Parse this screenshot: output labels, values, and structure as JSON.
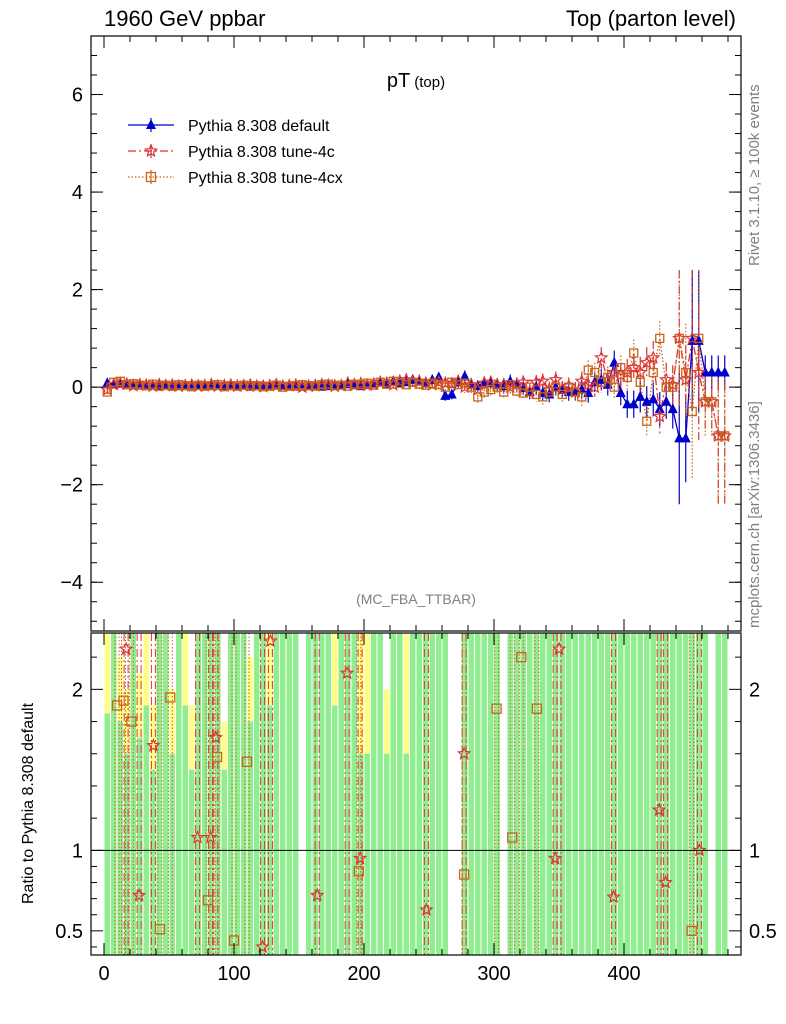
{
  "header": {
    "left": "1960 GeV ppbar",
    "right": "Top (parton level)"
  },
  "side_labels": {
    "rivet": "Rivet 3.1.10, ≥ 100k events",
    "mcplots": "mcplots.cern.ch [arXiv:1306.3436]"
  },
  "analysis_tag": "(MC_FBA_TTBAR)",
  "colors": {
    "default": "#0000cc",
    "tune4c": "#dd3333",
    "tune4cx": "#c8631b",
    "band_green": "#90ee90",
    "band_yellow": "#ffff88"
  },
  "chart_data": [
    {
      "type": "line",
      "title": "pT",
      "title_sub": "(top)",
      "xlim": [
        -10,
        490
      ],
      "ylim": [
        -5,
        7.2
      ],
      "yticks": [
        -4,
        -2,
        0,
        2,
        4,
        6
      ],
      "ytick_labels": [
        "−4",
        "−2",
        "0",
        "2",
        "4",
        "6"
      ],
      "legend_position": "top-left",
      "x": [
        2.5,
        7.5,
        12.5,
        17.5,
        22.5,
        27.5,
        32.5,
        37.5,
        42.5,
        47.5,
        52.5,
        57.5,
        62.5,
        67.5,
        72.5,
        77.5,
        82.5,
        87.5,
        92.5,
        97.5,
        102.5,
        107.5,
        112.5,
        117.5,
        122.5,
        127.5,
        132.5,
        137.5,
        142.5,
        147.5,
        152.5,
        157.5,
        162.5,
        167.5,
        172.5,
        177.5,
        182.5,
        187.5,
        192.5,
        197.5,
        202.5,
        207.5,
        212.5,
        217.5,
        222.5,
        227.5,
        232.5,
        237.5,
        242.5,
        247.5,
        252.5,
        257.5,
        262.5,
        267.5,
        272.5,
        277.5,
        282.5,
        287.5,
        292.5,
        297.5,
        302.5,
        307.5,
        312.5,
        317.5,
        322.5,
        327.5,
        332.5,
        337.5,
        342.5,
        347.5,
        352.5,
        357.5,
        362.5,
        367.5,
        372.5,
        377.5,
        382.5,
        387.5,
        392.5,
        397.5,
        402.5,
        407.5,
        412.5,
        417.5,
        422.5,
        427.5,
        432.5,
        437.5,
        442.5,
        447.5,
        452.5,
        457.5,
        462.5,
        467.5,
        472.5,
        477.5
      ],
      "series": [
        {
          "name": "Pythia 8.308 default",
          "marker": "triangle",
          "values": [
            0.08,
            0.06,
            0.07,
            0.05,
            0.04,
            0.05,
            0.03,
            0.04,
            0.02,
            0.05,
            0.03,
            0.02,
            0.04,
            0.03,
            0.05,
            0.02,
            0.03,
            0.04,
            0.02,
            0.03,
            0.02,
            0.03,
            0.01,
            0.02,
            0.04,
            0.02,
            0.03,
            0.03,
            0.02,
            0.01,
            0.03,
            0.02,
            0.04,
            0.01,
            0.02,
            0.05,
            0.03,
            0.06,
            0.04,
            0.02,
            0.05,
            0.08,
            0.1,
            0.06,
            0.12,
            0.08,
            0.1,
            0.15,
            0.12,
            0.08,
            0.15,
            0.2,
            -0.18,
            -0.15,
            0.1,
            0.22,
            0.06,
            0.02,
            0.1,
            0.08,
            0.05,
            0.02,
            0.12,
            0.06,
            -0.02,
            -0.1,
            0.0,
            -0.12,
            -0.15,
            0.0,
            -0.05,
            -0.1,
            -0.08,
            -0.05,
            -0.12,
            0.1,
            0.15,
            0.05,
            0.5,
            -0.12,
            -0.35,
            -0.35,
            -0.2,
            -0.3,
            -0.25,
            -0.45,
            -0.3,
            -0.45,
            -1.05,
            -1.05,
            0.95,
            0.95,
            0.3,
            0.3,
            0.3,
            0.3
          ],
          "errors": [
            0.06,
            0.06,
            0.05,
            0.05,
            0.05,
            0.05,
            0.05,
            0.05,
            0.05,
            0.05,
            0.05,
            0.05,
            0.05,
            0.05,
            0.05,
            0.05,
            0.05,
            0.05,
            0.05,
            0.05,
            0.05,
            0.05,
            0.05,
            0.05,
            0.05,
            0.05,
            0.05,
            0.05,
            0.05,
            0.05,
            0.05,
            0.05,
            0.05,
            0.05,
            0.05,
            0.06,
            0.06,
            0.06,
            0.06,
            0.06,
            0.07,
            0.07,
            0.07,
            0.07,
            0.08,
            0.08,
            0.08,
            0.08,
            0.09,
            0.09,
            0.1,
            0.1,
            0.1,
            0.1,
            0.1,
            0.12,
            0.12,
            0.12,
            0.12,
            0.12,
            0.13,
            0.13,
            0.14,
            0.14,
            0.14,
            0.15,
            0.15,
            0.16,
            0.16,
            0.17,
            0.17,
            0.18,
            0.18,
            0.2,
            0.2,
            0.2,
            0.22,
            0.22,
            0.25,
            0.25,
            0.28,
            0.28,
            0.32,
            0.32,
            0.35,
            0.35,
            0.35,
            0.4,
            1.35,
            0.9,
            1.45,
            1.45,
            0.35,
            0.35,
            0.35,
            0.35
          ]
        },
        {
          "name": "Pythia 8.308 tune-4c",
          "marker": "star",
          "values": [
            -0.05,
            0.05,
            0.07,
            0.06,
            0.03,
            0.05,
            0.04,
            0.02,
            0.05,
            0.03,
            0.04,
            0.02,
            0.03,
            0.04,
            0.02,
            0.03,
            0.05,
            0.02,
            0.03,
            0.04,
            0.02,
            0.03,
            0.04,
            0.02,
            0.01,
            0.03,
            0.05,
            0.02,
            0.03,
            0.04,
            0.0,
            0.02,
            0.03,
            0.05,
            0.04,
            0.02,
            0.03,
            0.08,
            0.05,
            0.07,
            0.04,
            0.06,
            0.1,
            0.08,
            0.05,
            0.12,
            0.15,
            0.1,
            0.12,
            0.08,
            0.05,
            0.1,
            0.08,
            0.06,
            0.12,
            0.0,
            0.05,
            -0.05,
            0.08,
            0.1,
            0.05,
            0.05,
            0.0,
            0.05,
            0.1,
            -0.1,
            0.1,
            0.12,
            -0.05,
            0.15,
            -0.05,
            0.02,
            -0.1,
            0.12,
            0.05,
            0.0,
            0.6,
            0.15,
            0.3,
            0.25,
            0.3,
            0.4,
            0.3,
            0.5,
            0.6,
            -0.6,
            0.15,
            0.05,
            1.0,
            0.15,
            1.0,
            0.3,
            -0.3,
            -0.3,
            -1.0,
            -1.0
          ],
          "errors": [
            0.06,
            0.06,
            0.05,
            0.05,
            0.05,
            0.05,
            0.05,
            0.05,
            0.05,
            0.05,
            0.05,
            0.05,
            0.05,
            0.05,
            0.05,
            0.05,
            0.05,
            0.05,
            0.05,
            0.05,
            0.05,
            0.05,
            0.05,
            0.05,
            0.05,
            0.05,
            0.05,
            0.05,
            0.05,
            0.05,
            0.05,
            0.05,
            0.05,
            0.05,
            0.05,
            0.06,
            0.06,
            0.06,
            0.06,
            0.06,
            0.07,
            0.07,
            0.07,
            0.07,
            0.08,
            0.08,
            0.08,
            0.08,
            0.09,
            0.09,
            0.1,
            0.1,
            0.1,
            0.1,
            0.1,
            0.12,
            0.12,
            0.12,
            0.12,
            0.12,
            0.13,
            0.13,
            0.14,
            0.14,
            0.14,
            0.15,
            0.15,
            0.16,
            0.16,
            0.17,
            0.17,
            0.18,
            0.18,
            0.2,
            0.2,
            0.2,
            0.22,
            0.22,
            0.25,
            0.25,
            0.28,
            0.28,
            0.32,
            0.32,
            0.35,
            0.35,
            0.35,
            0.4,
            1.4,
            0.7,
            1.4,
            1.4,
            0.6,
            0.6,
            1.4,
            1.4
          ]
        },
        {
          "name": "Pythia 8.308 tune-4cx",
          "marker": "square",
          "values": [
            -0.1,
            0.1,
            0.12,
            0.05,
            0.07,
            0.04,
            0.03,
            0.06,
            0.02,
            0.04,
            0.02,
            0.05,
            0.03,
            0.01,
            0.04,
            0.02,
            0.03,
            0.05,
            0.01,
            0.03,
            0.02,
            0.04,
            0.02,
            0.03,
            0.01,
            0.02,
            0.04,
            0.0,
            0.02,
            0.03,
            0.05,
            0.03,
            0.02,
            0.05,
            0.06,
            0.03,
            0.04,
            0.02,
            0.06,
            0.05,
            0.08,
            0.04,
            0.1,
            0.06,
            0.12,
            0.08,
            0.05,
            0.1,
            0.06,
            0.04,
            0.08,
            0.05,
            0.0,
            0.1,
            0.05,
            0.08,
            0.0,
            -0.2,
            -0.1,
            -0.05,
            0.0,
            -0.1,
            0.05,
            -0.08,
            -0.12,
            0.0,
            -0.15,
            -0.2,
            -0.1,
            0.0,
            -0.15,
            0.0,
            -0.1,
            -0.2,
            0.35,
            0.3,
            0.1,
            0.2,
            0.0,
            0.4,
            0.2,
            0.7,
            0.1,
            -0.7,
            0.3,
            1.0,
            0.0,
            0.0,
            1.0,
            0.3,
            -0.5,
            1.0,
            -0.3,
            -0.3,
            -1.0,
            -1.0
          ],
          "errors": [
            0.06,
            0.06,
            0.05,
            0.05,
            0.05,
            0.05,
            0.05,
            0.05,
            0.05,
            0.05,
            0.05,
            0.05,
            0.05,
            0.05,
            0.05,
            0.05,
            0.05,
            0.05,
            0.05,
            0.05,
            0.05,
            0.05,
            0.05,
            0.05,
            0.05,
            0.05,
            0.05,
            0.05,
            0.05,
            0.05,
            0.05,
            0.05,
            0.05,
            0.05,
            0.05,
            0.06,
            0.06,
            0.06,
            0.06,
            0.06,
            0.07,
            0.07,
            0.07,
            0.07,
            0.08,
            0.08,
            0.08,
            0.08,
            0.09,
            0.09,
            0.1,
            0.1,
            0.1,
            0.1,
            0.1,
            0.12,
            0.12,
            0.12,
            0.12,
            0.12,
            0.13,
            0.13,
            0.14,
            0.14,
            0.14,
            0.15,
            0.15,
            0.16,
            0.16,
            0.17,
            0.17,
            0.18,
            0.18,
            0.2,
            0.2,
            0.2,
            0.22,
            0.22,
            0.25,
            0.25,
            0.28,
            0.28,
            0.32,
            0.32,
            0.35,
            0.35,
            0.35,
            0.4,
            1.4,
            1.0,
            1.4,
            1.4,
            0.7,
            0.7,
            1.4,
            1.4
          ]
        }
      ]
    },
    {
      "type": "line",
      "ylabel": "Ratio to Pythia 8.308 default",
      "xlim": [
        -10,
        490
      ],
      "ylim": [
        0.35,
        2.35
      ],
      "yticks": [
        0.5,
        1,
        2
      ],
      "ytick_labels": [
        "0.5",
        "1",
        "2"
      ],
      "xticks": [
        0,
        100,
        200,
        300,
        400
      ],
      "xtick_labels": [
        "0",
        "100",
        "200",
        "300",
        "400"
      ],
      "reference_line": 1,
      "bands": {
        "yellow_hi": [
          2.35,
          2.35,
          2.2,
          2.0,
          2.35,
          2.1,
          2.35,
          1.9,
          2.35,
          2.35,
          2.0,
          2.35,
          2.35,
          1.9,
          2.35,
          2.35,
          2.35,
          2.35,
          1.8,
          2.35,
          2.35,
          2.35,
          2.2,
          2.35,
          2.35,
          2.35,
          2.35,
          2.35,
          2.35,
          2.35,
          0.35,
          2.35,
          2.35,
          2.35,
          2.35,
          2.35,
          2.35,
          2.35,
          2.35,
          2.35,
          2.35,
          2.35,
          2.35,
          2.0,
          2.35,
          2.35,
          2.35,
          2.35,
          2.35,
          2.35,
          2.35,
          2.35,
          2.35,
          0.35,
          0.35,
          2.35,
          2.35,
          2.35,
          2.35,
          2.35,
          2.35,
          0.35,
          2.35,
          2.35,
          2.35,
          2.35,
          2.35,
          2.35,
          2.35,
          2.35,
          2.35,
          2.35,
          2.35,
          2.35,
          2.35,
          2.35,
          2.35,
          2.35,
          2.35,
          2.35,
          2.35,
          2.35,
          2.35,
          2.35,
          2.35,
          2.35,
          2.35,
          2.35,
          2.35,
          2.35,
          2.35,
          2.35,
          2.35,
          0.35,
          2.35,
          2.35
        ],
        "green_hi": [
          1.85,
          2.35,
          1.8,
          1.6,
          2.35,
          1.7,
          1.9,
          1.5,
          2.35,
          2.35,
          1.6,
          2.35,
          1.9,
          1.5,
          2.35,
          2.35,
          2.35,
          2.35,
          1.5,
          2.35,
          2.35,
          2.35,
          1.8,
          2.35,
          2.35,
          1.9,
          2.35,
          2.35,
          2.35,
          2.35,
          0.35,
          2.35,
          2.35,
          2.35,
          2.35,
          1.9,
          2.35,
          2.35,
          2.35,
          1.6,
          1.6,
          2.35,
          2.35,
          1.6,
          2.35,
          2.35,
          1.6,
          2.35,
          2.35,
          2.35,
          2.35,
          2.35,
          2.35,
          0.35,
          0.35,
          2.35,
          2.35,
          2.35,
          2.35,
          2.35,
          2.35,
          0.35,
          2.35,
          2.35,
          2.35,
          2.35,
          2.35,
          2.35,
          2.35,
          2.35,
          2.35,
          2.35,
          2.35,
          2.35,
          2.35,
          2.35,
          2.35,
          2.35,
          2.35,
          2.35,
          2.35,
          2.35,
          2.35,
          2.35,
          2.35,
          2.35,
          2.35,
          2.35,
          2.35,
          2.35,
          2.35,
          2.35,
          2.35,
          0.35,
          2.35,
          2.35
        ]
      },
      "series": [
        {
          "name": "Pythia 8.308 tune-4c",
          "points": [
            [
              17,
              2.25
            ],
            [
              27,
              0.72
            ],
            [
              38,
              1.65
            ],
            [
              72,
              1.08
            ],
            [
              82,
              1.08
            ],
            [
              86,
              1.7
            ],
            [
              122,
              0.4
            ],
            [
              128,
              2.3
            ],
            [
              164,
              0.72
            ],
            [
              187,
              2.1
            ],
            [
              197,
              0.95
            ],
            [
              248,
              0.63
            ],
            [
              277,
              1.6
            ],
            [
              347,
              0.95
            ],
            [
              350,
              2.25
            ],
            [
              392,
              0.71
            ],
            [
              427,
              1.25
            ],
            [
              432,
              0.8
            ],
            [
              458,
              1.0
            ]
          ]
        },
        {
          "name": "Pythia 8.308 tune-4cx",
          "points": [
            [
              10,
              1.9
            ],
            [
              15,
              1.93
            ],
            [
              21,
              1.8
            ],
            [
              43,
              0.51
            ],
            [
              51,
              1.95
            ],
            [
              80,
              0.69
            ],
            [
              87,
              1.58
            ],
            [
              100,
              0.44
            ],
            [
              110,
              1.55
            ],
            [
              196,
              0.87
            ],
            [
              277,
              0.85
            ],
            [
              302,
              1.88
            ],
            [
              314,
              1.08
            ],
            [
              321,
              2.2
            ],
            [
              333,
              1.88
            ],
            [
              452,
              0.5
            ]
          ]
        }
      ]
    }
  ]
}
